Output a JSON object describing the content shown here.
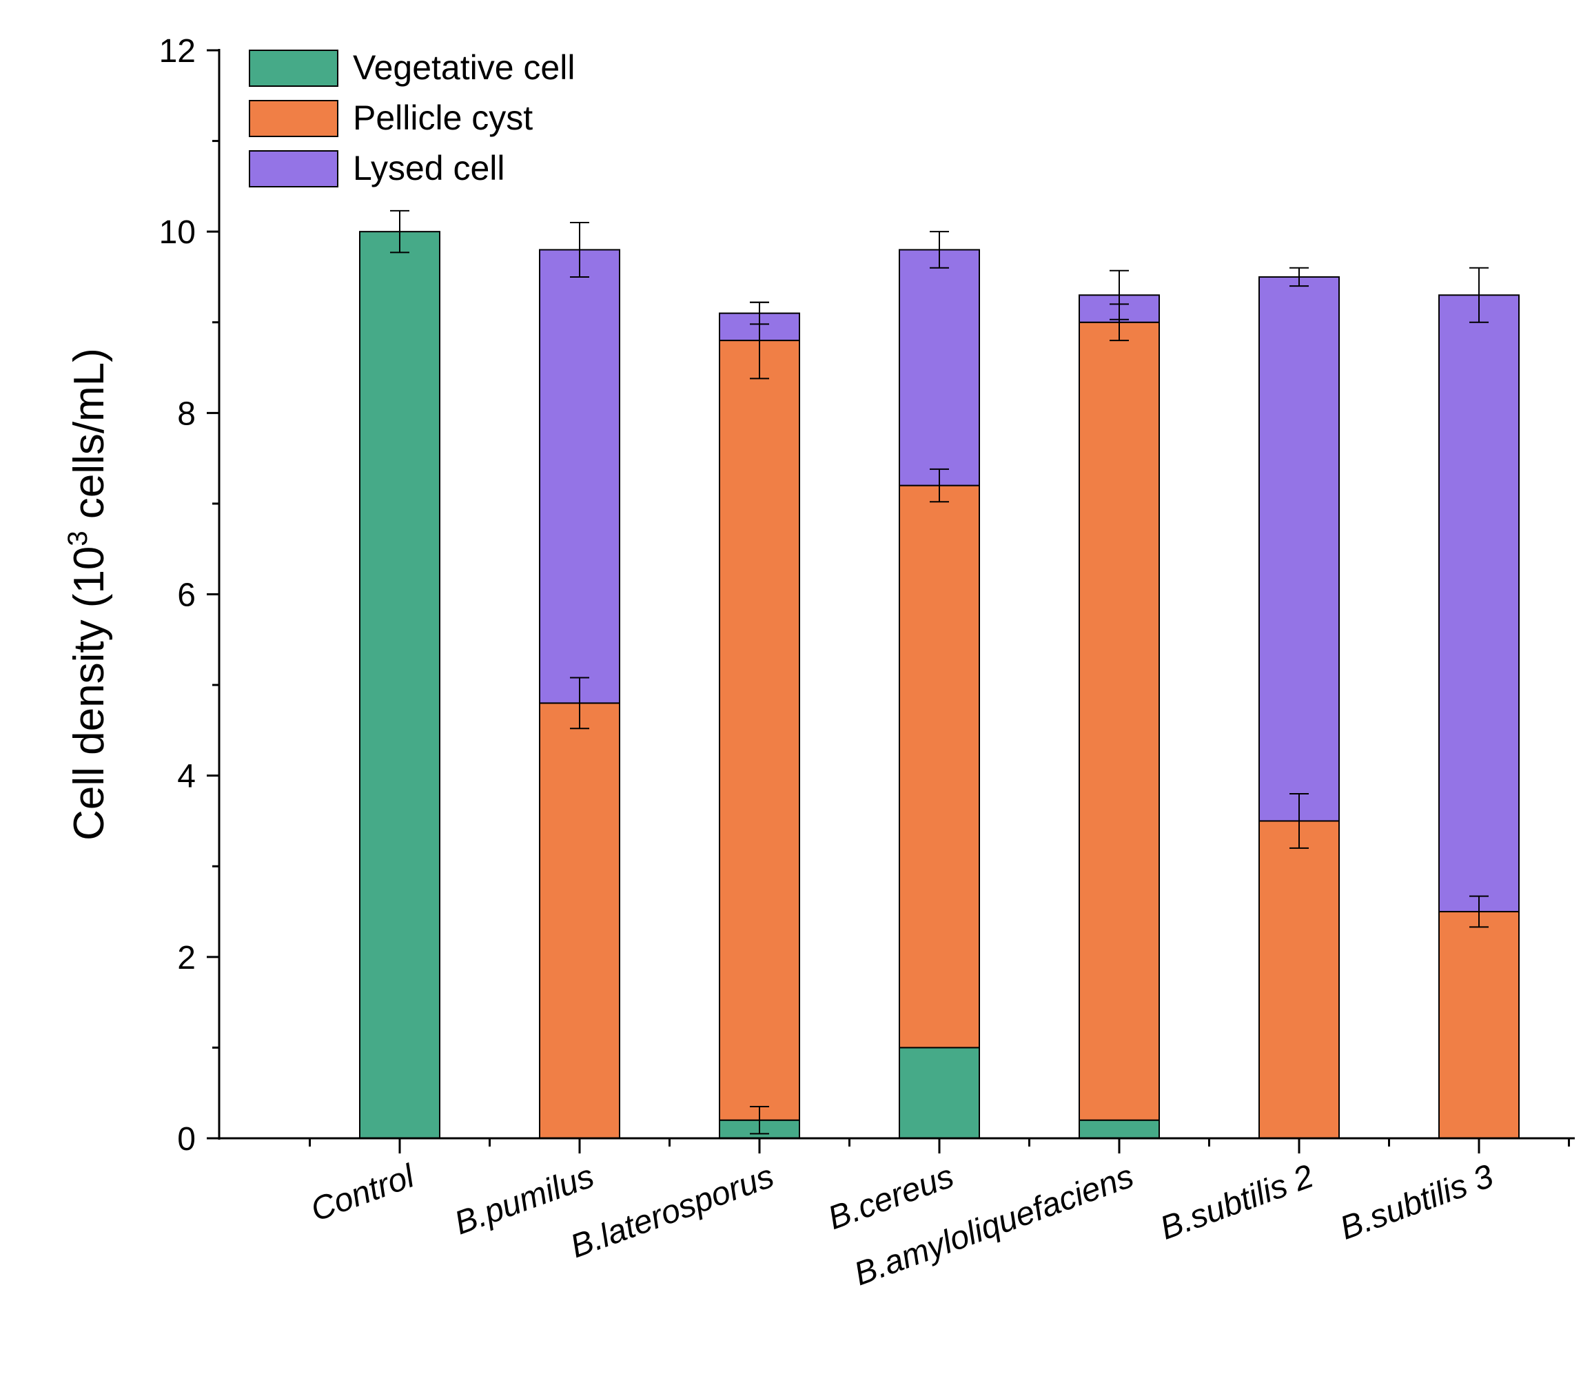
{
  "chart_data": {
    "type": "bar",
    "stacked": true,
    "title": "",
    "xlabel": "",
    "ylabel": "Cell density (10",
    "ylabel_sup": "3",
    "ylabel_tail": " cells/mL)",
    "ylim": [
      0,
      12
    ],
    "yticks": [
      "0",
      "2",
      "4",
      "6",
      "8",
      "10",
      "12"
    ],
    "grid": false,
    "legend_position": "top-left",
    "colors": {
      "Vegetative cell": "#46aa88",
      "Pellicle cyst": "#f07f46",
      "Lysed cell": "#9474e6"
    },
    "categories": [
      "Control",
      "B.pumilus",
      "B.laterosporus",
      "B.cereus",
      "B.amyloliquefaciens",
      "B.subtilis 2",
      "B.subtilis 3"
    ],
    "series": [
      {
        "name": "Vegetative cell",
        "values": [
          10.0,
          0,
          0.2,
          1.0,
          0.2,
          0,
          0
        ],
        "errors": [
          0.23,
          null,
          0.15,
          null,
          null,
          null,
          null
        ]
      },
      {
        "name": "Pellicle cyst",
        "values": [
          0,
          4.8,
          8.6,
          6.2,
          8.8,
          3.5,
          2.5
        ],
        "errors": [
          null,
          0.28,
          0.42,
          0.18,
          0.2,
          0.3,
          0.17
        ]
      },
      {
        "name": "Lysed cell",
        "values": [
          0,
          5.0,
          0.3,
          2.6,
          0.3,
          6.0,
          6.8
        ],
        "errors": [
          null,
          0.3,
          0.12,
          0.2,
          0.27,
          0.1,
          0.3
        ]
      }
    ]
  }
}
